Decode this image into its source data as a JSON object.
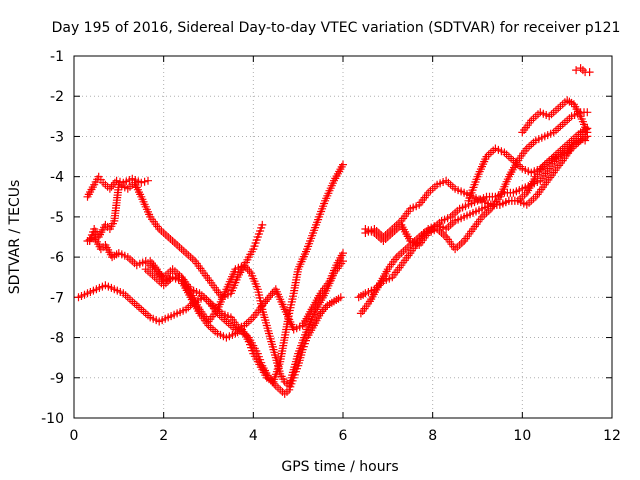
{
  "chart_data": {
    "type": "scatter",
    "title": "Day 195 of 2016, Sidereal Day-to-day VTEC variation (SDTVAR) for receiver p121",
    "xlabel": "GPS time / hours",
    "ylabel": "SDTVAR / TECUs",
    "xlim": [
      0,
      12
    ],
    "ylim": [
      -10,
      -1
    ],
    "xticks": [
      0,
      2,
      4,
      6,
      8,
      10,
      12
    ],
    "yticks": [
      -10,
      -9,
      -8,
      -7,
      -6,
      -5,
      -4,
      -3,
      -2,
      -1
    ],
    "xtick_labels": [
      "0",
      "2",
      "4",
      "6",
      "8",
      "10",
      "12"
    ],
    "ytick_labels": [
      "-10",
      "-9",
      "-8",
      "-7",
      "-6",
      "-5",
      "-4",
      "-3",
      "-2",
      "-1"
    ],
    "grid": true,
    "marker": "plus",
    "color": "#ff0000",
    "series": [
      {
        "x": [
          0.3,
          0.45,
          0.55,
          0.65,
          0.8,
          0.95,
          1.1,
          1.3,
          1.5,
          1.65
        ],
        "y": [
          -4.5,
          -4.2,
          -4.0,
          -4.15,
          -4.3,
          -4.1,
          -4.15,
          -4.05,
          -4.15,
          -4.1
        ]
      },
      {
        "x": [
          0.35,
          0.45,
          0.55,
          0.7,
          0.8,
          0.9,
          1.0,
          1.2,
          1.35,
          1.5,
          1.7,
          1.9,
          2.1,
          2.3,
          2.5,
          2.7,
          2.9,
          3.1,
          3.3,
          3.5,
          3.65,
          3.8,
          3.9,
          4.0,
          4.1,
          4.2
        ],
        "y": [
          -5.6,
          -5.3,
          -5.5,
          -5.2,
          -5.3,
          -5.1,
          -4.2,
          -4.3,
          -4.15,
          -4.5,
          -5.0,
          -5.3,
          -5.5,
          -5.7,
          -5.9,
          -6.1,
          -6.4,
          -6.7,
          -7.0,
          -6.9,
          -6.5,
          -6.2,
          -6.0,
          -5.8,
          -5.5,
          -5.2
        ]
      },
      {
        "x": [
          0.3,
          0.45,
          0.6,
          0.7,
          0.85,
          1.0,
          1.2,
          1.4,
          1.6,
          1.8,
          2.0,
          2.2,
          2.4,
          2.6,
          2.8,
          3.0,
          3.2,
          3.4,
          3.6,
          3.8,
          4.0,
          4.2,
          4.35,
          4.5,
          4.7,
          4.9,
          5.1,
          5.3,
          5.5,
          5.7,
          5.85,
          6.0
        ],
        "y": [
          -5.6,
          -5.5,
          -5.8,
          -5.7,
          -6.0,
          -5.9,
          -6.0,
          -6.2,
          -6.1,
          -6.3,
          -6.5,
          -6.3,
          -6.5,
          -6.8,
          -6.9,
          -7.1,
          -7.4,
          -7.6,
          -7.8,
          -7.7,
          -7.5,
          -7.2,
          -7.0,
          -6.8,
          -7.3,
          -7.8,
          -7.7,
          -7.3,
          -6.9,
          -6.6,
          -6.2,
          -5.9
        ]
      },
      {
        "x": [
          0.1,
          0.3,
          0.5,
          0.7,
          0.9,
          1.1,
          1.3,
          1.5,
          1.7,
          1.9,
          2.1,
          2.3,
          2.5,
          2.7,
          2.9,
          3.1,
          3.3,
          3.5,
          3.7,
          3.9,
          4.0,
          4.1,
          4.2,
          4.35,
          4.5,
          4.6,
          4.7,
          4.8,
          4.9,
          5.0,
          5.1,
          5.2,
          5.35,
          5.5,
          5.65,
          5.8,
          5.95
        ],
        "y": [
          -7.0,
          -6.9,
          -6.8,
          -6.7,
          -6.8,
          -6.9,
          -7.1,
          -7.3,
          -7.5,
          -7.6,
          -7.5,
          -7.4,
          -7.3,
          -7.1,
          -7.0,
          -7.2,
          -7.4,
          -7.5,
          -7.8,
          -8.0,
          -8.2,
          -8.4,
          -8.7,
          -9.0,
          -9.2,
          -9.3,
          -9.4,
          -9.3,
          -9.0,
          -8.7,
          -8.3,
          -8.0,
          -7.7,
          -7.4,
          -7.2,
          -7.1,
          -7.0
        ]
      },
      {
        "x": [
          1.6,
          1.8,
          2.0,
          2.2,
          2.4,
          2.6,
          2.8,
          3.0,
          3.2,
          3.4,
          3.6,
          3.75,
          3.9,
          4.0,
          4.1,
          4.2,
          4.3,
          4.45,
          4.6,
          4.7,
          4.8,
          4.9,
          5.0,
          5.2,
          5.4,
          5.6,
          5.8,
          6.0
        ],
        "y": [
          -6.3,
          -6.5,
          -6.7,
          -6.5,
          -6.6,
          -7.0,
          -7.4,
          -7.7,
          -7.9,
          -8.0,
          -7.9,
          -7.8,
          -8.1,
          -8.4,
          -8.6,
          -8.8,
          -9.0,
          -9.1,
          -8.6,
          -8.0,
          -7.4,
          -6.9,
          -6.3,
          -5.8,
          -5.2,
          -4.6,
          -4.1,
          -3.7
        ]
      },
      {
        "x": [
          1.7,
          1.85,
          2.0,
          2.2,
          2.4,
          2.6,
          2.8,
          3.0,
          3.2,
          3.4,
          3.6,
          3.8,
          3.95,
          4.1,
          4.2,
          4.35,
          4.5,
          4.6,
          4.7,
          4.8,
          4.9,
          5.0,
          5.2,
          5.4,
          5.6,
          5.8,
          6.0
        ],
        "y": [
          -6.1,
          -6.3,
          -6.6,
          -6.5,
          -6.5,
          -6.9,
          -7.3,
          -7.6,
          -7.3,
          -6.8,
          -6.3,
          -6.2,
          -6.4,
          -6.8,
          -7.3,
          -7.9,
          -8.5,
          -8.9,
          -9.1,
          -9.2,
          -8.8,
          -8.4,
          -7.8,
          -7.3,
          -6.9,
          -6.4,
          -6.1
        ]
      },
      {
        "x": [
          6.35,
          6.5,
          6.7,
          6.9,
          7.1,
          7.3,
          7.5,
          7.7,
          7.9,
          8.1,
          8.3,
          8.5,
          8.7,
          8.9,
          9.1,
          9.3,
          9.5,
          9.7,
          9.9,
          10.1,
          10.3,
          10.5,
          10.7,
          10.9,
          11.1,
          11.3,
          11.45
        ],
        "y": [
          -7.0,
          -6.9,
          -6.8,
          -6.6,
          -6.5,
          -6.2,
          -5.9,
          -5.6,
          -5.3,
          -5.2,
          -5.3,
          -5.1,
          -5.0,
          -4.9,
          -4.8,
          -4.7,
          -4.7,
          -4.6,
          -4.6,
          -4.7,
          -4.5,
          -4.2,
          -3.9,
          -3.6,
          -3.3,
          -3.1,
          -3.0
        ]
      },
      {
        "x": [
          6.4,
          6.6,
          6.8,
          7.0,
          7.2,
          7.4,
          7.6,
          7.8,
          8.0,
          8.2,
          8.4,
          8.6,
          8.8,
          9.0,
          9.2,
          9.4,
          9.6,
          9.8,
          10.0,
          10.2,
          10.4,
          10.6,
          10.8,
          11.0,
          11.2,
          11.4
        ],
        "y": [
          -7.4,
          -7.1,
          -6.7,
          -6.3,
          -6.0,
          -5.8,
          -5.6,
          -5.4,
          -5.3,
          -5.1,
          -5.0,
          -4.8,
          -4.7,
          -4.6,
          -4.5,
          -4.5,
          -4.4,
          -4.4,
          -4.3,
          -4.2,
          -4.1,
          -3.8,
          -3.5,
          -3.3,
          -3.1,
          -2.9
        ]
      },
      {
        "x": [
          6.5,
          6.7,
          6.9,
          7.1,
          7.3,
          7.5,
          7.7,
          7.9,
          8.1,
          8.3,
          8.5,
          8.7,
          8.9,
          9.1,
          9.3,
          9.5,
          9.7,
          9.9,
          10.1,
          10.3,
          10.5,
          10.7,
          10.9,
          11.1,
          11.3,
          11.45
        ],
        "y": [
          -5.4,
          -5.3,
          -5.5,
          -5.3,
          -5.1,
          -4.8,
          -4.7,
          -4.4,
          -4.2,
          -4.1,
          -4.3,
          -4.4,
          -4.5,
          -4.6,
          -4.7,
          -4.7,
          -4.6,
          -4.6,
          -4.4,
          -4.0,
          -3.7,
          -3.5,
          -3.3,
          -3.1,
          -2.9,
          -2.8
        ]
      },
      {
        "x": [
          6.5,
          6.7,
          6.9,
          7.1,
          7.3,
          7.5,
          7.7,
          7.9,
          8.1,
          8.3,
          8.5,
          8.7,
          8.9,
          9.1,
          9.3,
          9.5,
          9.7,
          9.9,
          10.1,
          10.3,
          10.5,
          10.7,
          10.9,
          11.1,
          11.3,
          11.45
        ],
        "y": [
          -5.3,
          -5.4,
          -5.6,
          -5.4,
          -5.2,
          -5.6,
          -5.7,
          -5.4,
          -5.3,
          -5.5,
          -5.8,
          -5.6,
          -5.3,
          -5.0,
          -4.8,
          -4.5,
          -4.0,
          -3.6,
          -3.3,
          -3.1,
          -3.0,
          -2.9,
          -2.7,
          -2.5,
          -2.4,
          -2.4
        ]
      },
      {
        "x": [
          8.8,
          9.0,
          9.2,
          9.4,
          9.6,
          9.8,
          10.0,
          10.2,
          10.4,
          10.6,
          10.8,
          11.0,
          11.15,
          11.3,
          11.4
        ],
        "y": [
          -4.6,
          -4.0,
          -3.5,
          -3.3,
          -3.4,
          -3.6,
          -3.8,
          -3.9,
          -3.8,
          -3.6,
          -3.5,
          -3.4,
          -3.2,
          -3.1,
          -3.1
        ]
      },
      {
        "x": [
          10.0,
          10.2,
          10.4,
          10.6,
          10.8,
          11.0,
          11.15,
          11.3,
          11.45
        ],
        "y": [
          -2.9,
          -2.6,
          -2.4,
          -2.5,
          -2.3,
          -2.1,
          -2.2,
          -2.5,
          -2.9
        ]
      },
      {
        "x": [
          11.2,
          11.3,
          11.4,
          11.5
        ],
        "y": [
          -1.35,
          -1.3,
          -1.4,
          -1.4
        ]
      }
    ]
  }
}
